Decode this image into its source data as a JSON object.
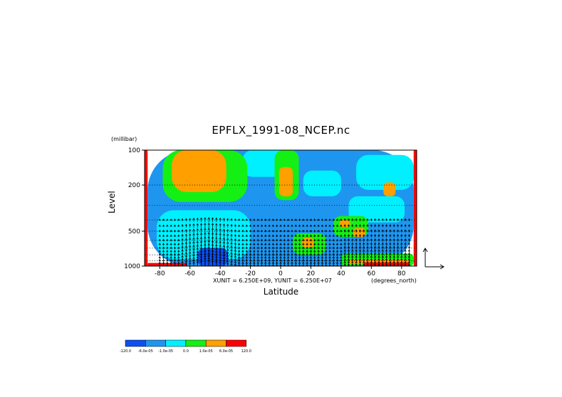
{
  "chart_data": {
    "type": "heatmap",
    "title": "EPFLX_1991-08_NCEP.nc",
    "xlabel": "Latitude",
    "ylabel": "Level",
    "y_units": "(millibar)",
    "x_units": "(degrees_north)",
    "vector_units": "XUNIT = 6.250E+09, YUNIT = 6.250E+07",
    "xlim": [
      -90,
      90
    ],
    "ylim": [
      1000,
      100
    ],
    "y_scale": "log",
    "grid": "horizontal dotted",
    "x_ticks": [
      "-80",
      "-60",
      "-40",
      "-20",
      "0",
      "20",
      "40",
      "60",
      "80"
    ],
    "x_tick_values": [
      -80,
      -60,
      -40,
      -20,
      0,
      20,
      40,
      60,
      80
    ],
    "y_ticks": [
      "100",
      "200",
      "500",
      "1000"
    ],
    "y_tick_values": [
      100,
      200,
      500,
      1000
    ],
    "colorbar": {
      "colors": [
        "#0a50f0",
        "#1e96f0",
        "#00f0ff",
        "#14f014",
        "#ffa000",
        "#ff0000"
      ],
      "labels": [
        "-120.0",
        "-6.0e-05",
        "-1.0e-05",
        "0.0",
        "1.0e-05",
        "6.0e-05",
        "120.0"
      ]
    },
    "regions": [
      {
        "category": 1,
        "lat": [
          -88,
          88
        ],
        "p": [
          100,
          1000
        ]
      },
      {
        "category": 2,
        "lat": [
          -82,
          -20
        ],
        "p": [
          330,
          870
        ]
      },
      {
        "category": 2,
        "lat": [
          45,
          82
        ],
        "p": [
          250,
          420
        ]
      },
      {
        "category": 2,
        "lat": [
          -25,
          10
        ],
        "p": [
          100,
          170
        ]
      },
      {
        "category": 2,
        "lat": [
          15,
          40
        ],
        "p": [
          150,
          250
        ]
      },
      {
        "category": 2,
        "lat": [
          50,
          88
        ],
        "p": [
          110,
          220
        ]
      },
      {
        "category": 3,
        "lat": [
          -78,
          -22
        ],
        "p": [
          100,
          280
        ]
      },
      {
        "category": 3,
        "lat": [
          -4,
          12
        ],
        "p": [
          100,
          270
        ]
      },
      {
        "category": 3,
        "lat": [
          8,
          30
        ],
        "p": [
          520,
          800
        ]
      },
      {
        "category": 3,
        "lat": [
          35,
          58
        ],
        "p": [
          370,
          560
        ]
      },
      {
        "category": 3,
        "lat": [
          40,
          88
        ],
        "p": [
          780,
          1000
        ]
      },
      {
        "category": 4,
        "lat": [
          -72,
          -36
        ],
        "p": [
          100,
          230
        ]
      },
      {
        "category": 4,
        "lat": [
          -1,
          8
        ],
        "p": [
          140,
          250
        ]
      },
      {
        "category": 4,
        "lat": [
          14,
          22
        ],
        "p": [
          570,
          690
        ]
      },
      {
        "category": 4,
        "lat": [
          39,
          46
        ],
        "p": [
          400,
          460
        ]
      },
      {
        "category": 4,
        "lat": [
          48,
          56
        ],
        "p": [
          470,
          560
        ]
      },
      {
        "category": 4,
        "lat": [
          68,
          76
        ],
        "p": [
          190,
          250
        ]
      },
      {
        "category": 4,
        "lat": [
          45,
          85
        ],
        "p": [
          880,
          960
        ]
      },
      {
        "category": 5,
        "lat": [
          -88,
          -62
        ],
        "p": [
          940,
          1000
        ]
      },
      {
        "category": 5,
        "lat": [
          55,
          85
        ],
        "p": [
          930,
          1000
        ]
      },
      {
        "category": 5,
        "lat": [
          -90,
          -88
        ],
        "p": [
          100,
          1000
        ]
      },
      {
        "category": 5,
        "lat": [
          88,
          90
        ],
        "p": [
          100,
          1000
        ]
      },
      {
        "category": 0,
        "lat": [
          -55,
          -35
        ],
        "p": [
          700,
          1000
        ]
      }
    ],
    "vectors": {
      "lat_range": [
        -80,
        85
      ],
      "p_range": [
        400,
        1000
      ],
      "description": "upward-pointing EP flux arrows, strongest between -65 and -30 degrees"
    }
  }
}
